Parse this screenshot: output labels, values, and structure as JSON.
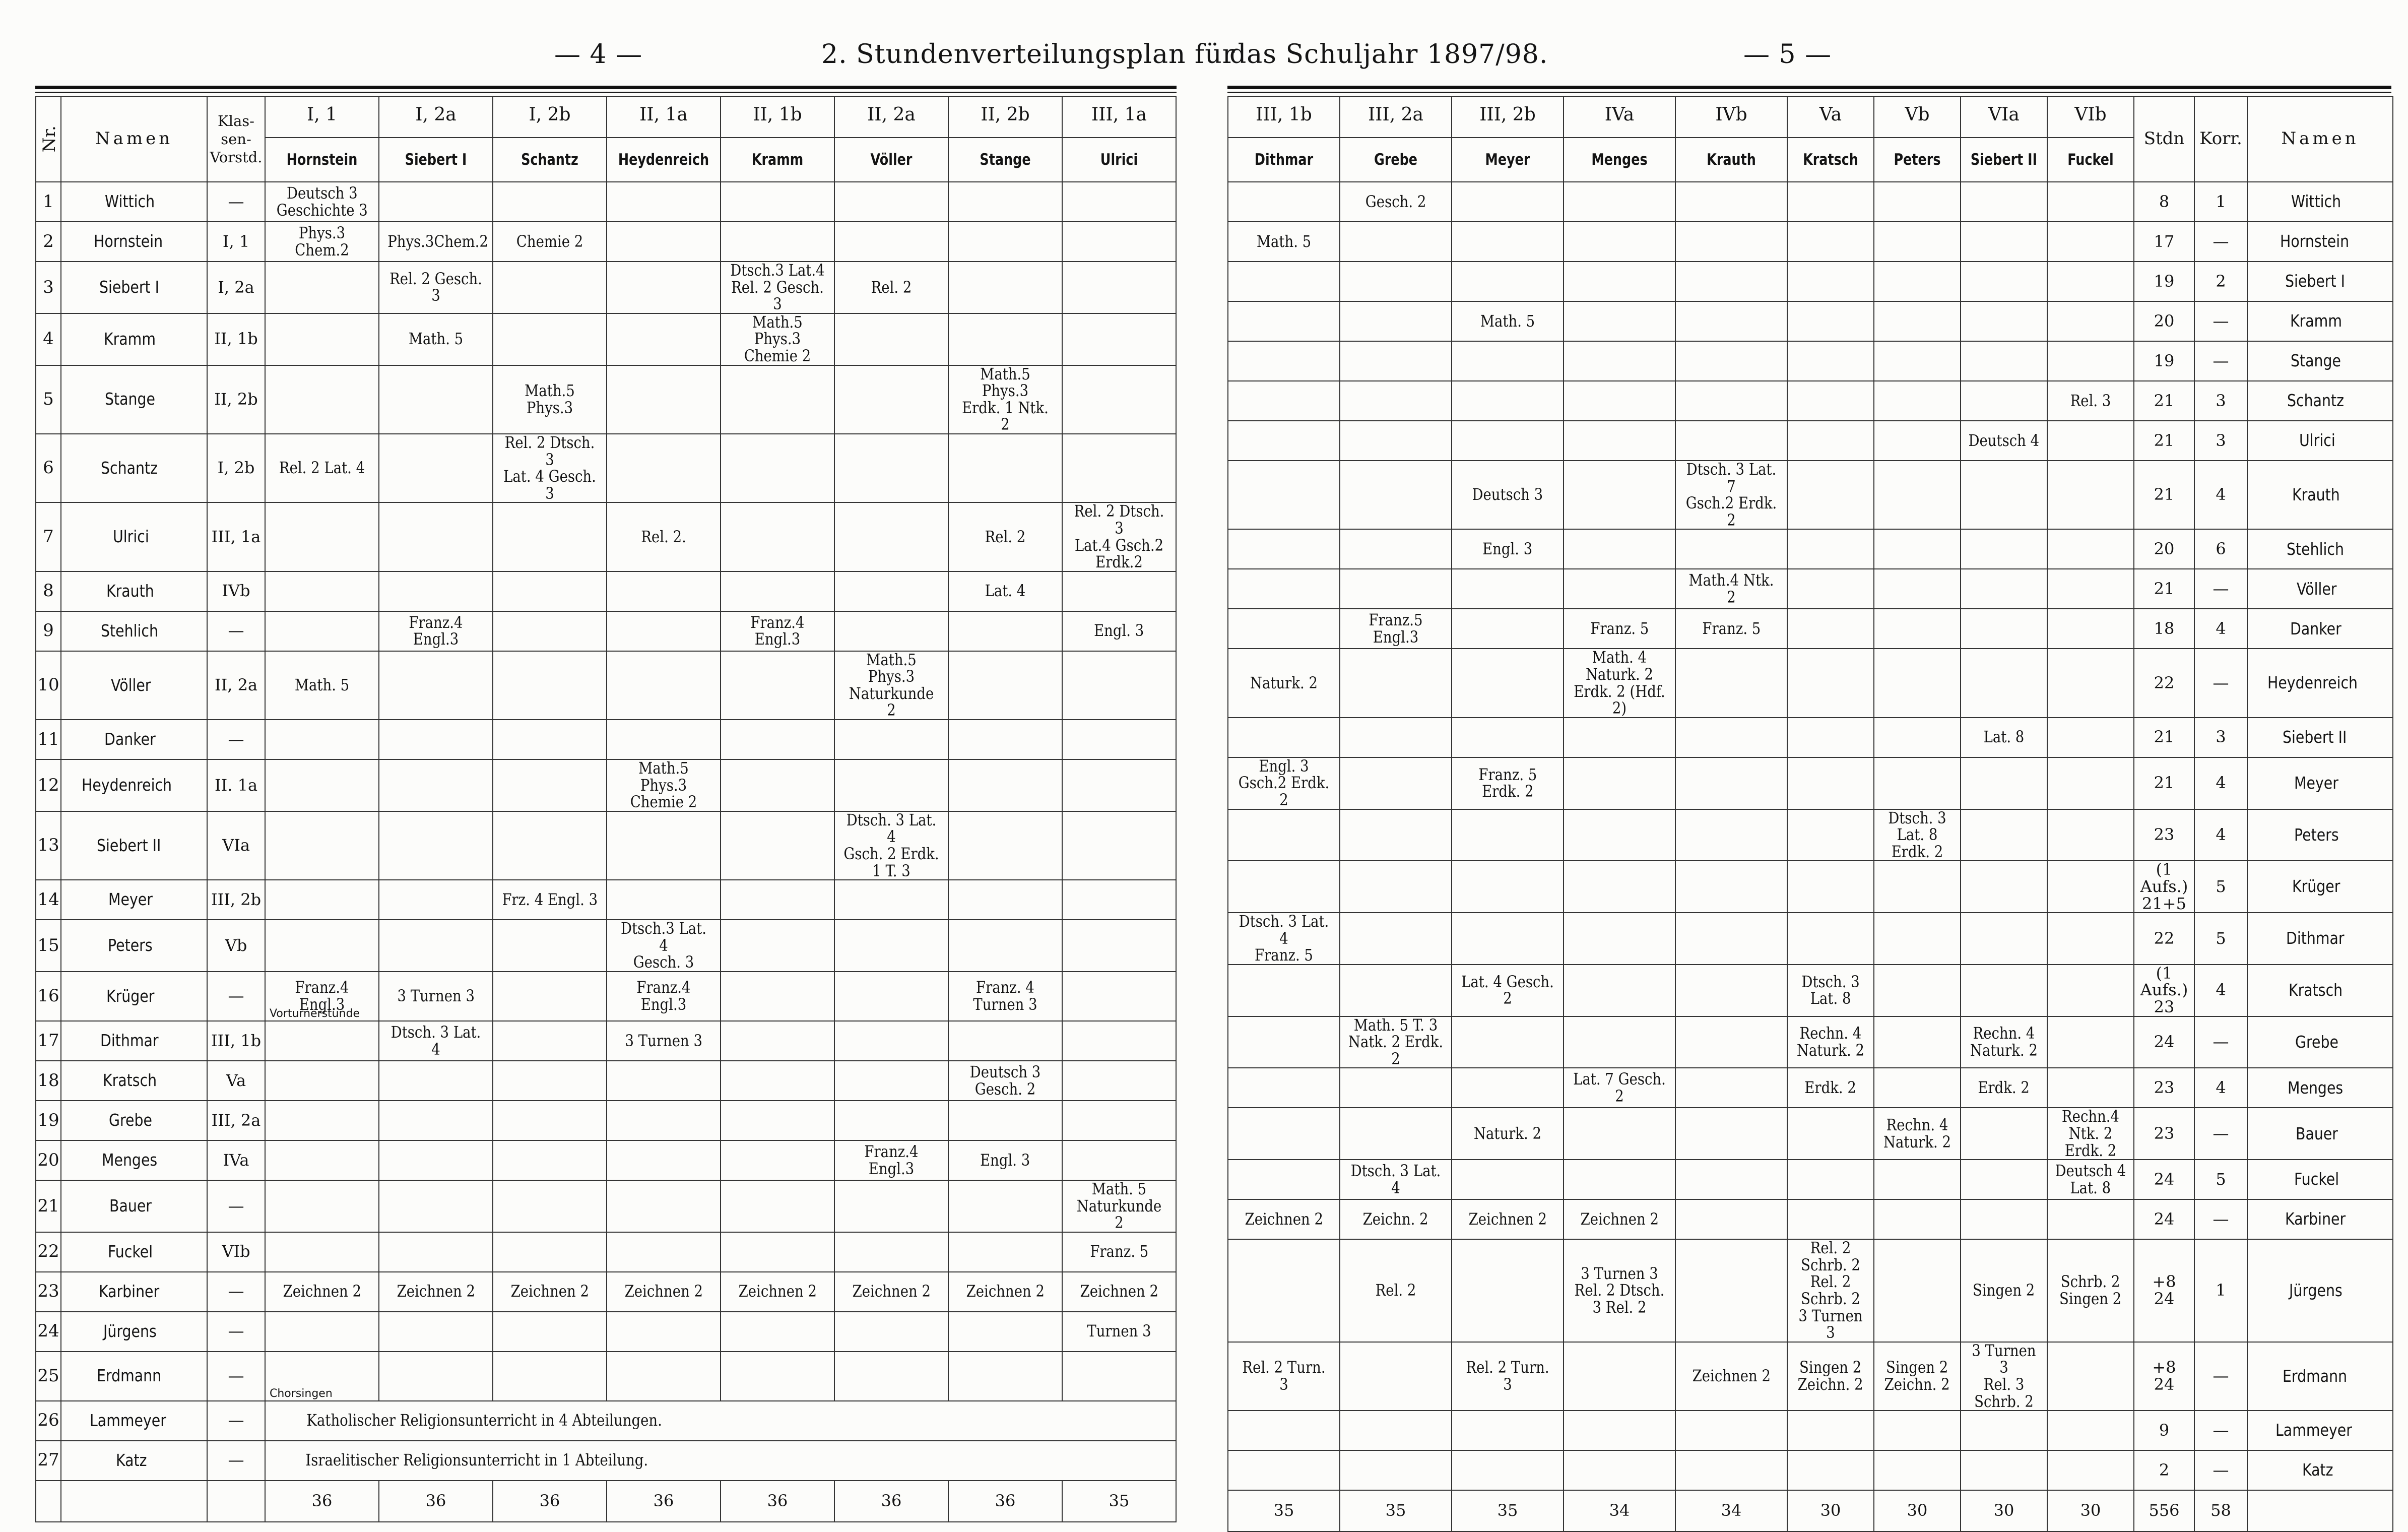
{
  "left_header": {
    "page_number": "— 4 —",
    "title": "2. Stundenverteilungsplan für"
  },
  "right_header": {
    "title": "das Schuljahr 1897/98.",
    "page_number": "— 5 —"
  },
  "left_table": {
    "col_nr": "Nr.",
    "col_name": "Namen",
    "col_klass": "Klas-\nsen-\nVorstd.",
    "columns": [
      {
        "grade": "I, 1",
        "teacher": "Hornstein"
      },
      {
        "grade": "I, 2a",
        "teacher": "Siebert I"
      },
      {
        "grade": "I, 2b",
        "teacher": "Schantz"
      },
      {
        "grade": "II, 1a",
        "teacher": "Heydenreich"
      },
      {
        "grade": "II, 1b",
        "teacher": "Kramm"
      },
      {
        "grade": "II, 2a",
        "teacher": "Völler"
      },
      {
        "grade": "II, 2b",
        "teacher": "Stange"
      },
      {
        "grade": "III, 1a",
        "teacher": "Ulrici"
      }
    ],
    "totals": [
      "36",
      "36",
      "36",
      "36",
      "36",
      "36",
      "36",
      "35"
    ]
  },
  "right_table": {
    "col_stdn": "Stdn",
    "col_korr": "Korr.",
    "col_name": "Namen",
    "columns": [
      {
        "grade": "III, 1b",
        "teacher": "Dithmar"
      },
      {
        "grade": "III, 2a",
        "teacher": "Grebe"
      },
      {
        "grade": "III, 2b",
        "teacher": "Meyer"
      },
      {
        "grade": "IVa",
        "teacher": "Menges"
      },
      {
        "grade": "IVb",
        "teacher": "Krauth"
      },
      {
        "grade": "Va",
        "teacher": "Kratsch"
      },
      {
        "grade": "Vb",
        "teacher": "Peters"
      },
      {
        "grade": "VIa",
        "teacher": "Siebert II"
      },
      {
        "grade": "VIb",
        "teacher": "Fuckel"
      }
    ],
    "totals": [
      "35",
      "35",
      "35",
      "34",
      "34",
      "30",
      "30",
      "30",
      "30",
      "556",
      "58"
    ]
  },
  "rows": [
    {
      "nr": "1",
      "name": "Wittich",
      "klass": "—",
      "left": [
        "Deutsch 3\nGeschichte 3",
        "",
        "",
        "",
        "",
        "",
        "",
        ""
      ],
      "right": [
        "",
        "Gesch. 2",
        "",
        "",
        "",
        "",
        "",
        "",
        ""
      ],
      "stdn": "8",
      "korr": "1"
    },
    {
      "nr": "2",
      "name": "Hornstein",
      "klass": "I, 1",
      "left": [
        "Phys.3 Chem.2",
        "Phys.3Chem.2",
        "Chemie 2",
        "",
        "",
        "",
        "",
        ""
      ],
      "right": [
        "Math. 5",
        "",
        "",
        "",
        "",
        "",
        "",
        "",
        ""
      ],
      "stdn": "17",
      "korr": "—"
    },
    {
      "nr": "3",
      "name": "Siebert I",
      "klass": "I, 2a",
      "left": [
        "",
        "Rel. 2 Gesch. 3",
        "",
        "",
        "Dtsch.3 Lat.4\nRel. 2 Gesch. 3",
        "Rel. 2",
        "",
        ""
      ],
      "right": [
        "",
        "",
        "",
        "",
        "",
        "",
        "",
        "",
        ""
      ],
      "stdn": "19",
      "korr": "2"
    },
    {
      "nr": "4",
      "name": "Kramm",
      "klass": "II, 1b",
      "left": [
        "",
        "Math. 5",
        "",
        "",
        "Math.5 Phys.3\nChemie 2",
        "",
        "",
        ""
      ],
      "right": [
        "",
        "",
        "Math. 5",
        "",
        "",
        "",
        "",
        "",
        ""
      ],
      "stdn": "20",
      "korr": "—"
    },
    {
      "nr": "5",
      "name": "Stange",
      "klass": "II, 2b",
      "left": [
        "",
        "",
        "Math.5 Phys.3",
        "",
        "",
        "",
        "Math.5 Phys.3\nErdk. 1 Ntk. 2",
        ""
      ],
      "right": [
        "",
        "",
        "",
        "",
        "",
        "",
        "",
        "",
        ""
      ],
      "stdn": "19",
      "korr": "—"
    },
    {
      "nr": "6",
      "name": "Schantz",
      "klass": "I, 2b",
      "left": [
        "Rel. 2 Lat. 4",
        "",
        "Rel. 2 Dtsch. 3\nLat. 4 Gesch. 3",
        "",
        "",
        "",
        "",
        ""
      ],
      "right": [
        "",
        "",
        "",
        "",
        "",
        "",
        "",
        "",
        "Rel. 3"
      ],
      "stdn": "21",
      "korr": "3"
    },
    {
      "nr": "7",
      "name": "Ulrici",
      "klass": "III, 1a",
      "left": [
        "",
        "",
        "",
        "Rel. 2.",
        "",
        "",
        "Rel. 2",
        "Rel. 2 Dtsch. 3\nLat.4 Gsch.2 Erdk.2"
      ],
      "right": [
        "",
        "",
        "",
        "",
        "",
        "",
        "",
        "Deutsch 4",
        ""
      ],
      "stdn": "21",
      "korr": "3"
    },
    {
      "nr": "8",
      "name": "Krauth",
      "klass": "IVb",
      "left": [
        "",
        "",
        "",
        "",
        "",
        "",
        "Lat. 4",
        ""
      ],
      "right": [
        "",
        "",
        "Deutsch 3",
        "",
        "Dtsch. 3 Lat. 7\nGsch.2 Erdk. 2",
        "",
        "",
        "",
        ""
      ],
      "stdn": "21",
      "korr": "4"
    },
    {
      "nr": "9",
      "name": "Stehlich",
      "klass": "—",
      "left": [
        "",
        "Franz.4 Engl.3",
        "",
        "",
        "Franz.4 Engl.3",
        "",
        "",
        "Engl. 3"
      ],
      "right": [
        "",
        "",
        "Engl. 3",
        "",
        "",
        "",
        "",
        "",
        ""
      ],
      "stdn": "20",
      "korr": "6"
    },
    {
      "nr": "10",
      "name": "Völler",
      "klass": "II, 2a",
      "left": [
        "Math. 5",
        "",
        "",
        "",
        "",
        "Math.5 Phys.3\nNaturkunde 2",
        "",
        ""
      ],
      "right": [
        "",
        "",
        "",
        "",
        "Math.4 Ntk. 2",
        "",
        "",
        "",
        ""
      ],
      "stdn": "21",
      "korr": "—"
    },
    {
      "nr": "11",
      "name": "Danker",
      "klass": "—",
      "left": [
        "",
        "",
        "",
        "",
        "",
        "",
        "",
        ""
      ],
      "right": [
        "",
        "Franz.5 Engl.3",
        "",
        "Franz. 5",
        "Franz. 5",
        "",
        "",
        "",
        ""
      ],
      "stdn": "18",
      "korr": "4"
    },
    {
      "nr": "12",
      "name": "Heydenreich",
      "klass": "II. 1a",
      "left": [
        "",
        "",
        "",
        "Math.5 Phys.3\nChemie 2",
        "",
        "",
        "",
        ""
      ],
      "right": [
        "Naturk. 2",
        "",
        "",
        "Math. 4 Naturk. 2\nErdk. 2 (Hdf. 2)",
        "",
        "",
        "",
        "",
        ""
      ],
      "stdn": "22",
      "korr": "—"
    },
    {
      "nr": "13",
      "name": "Siebert II",
      "klass": "VIa",
      "left": [
        "",
        "",
        "",
        "",
        "",
        "Dtsch. 3 Lat. 4\nGsch. 2 Erdk. 1 T. 3",
        "",
        ""
      ],
      "right": [
        "",
        "",
        "",
        "",
        "",
        "",
        "",
        "Lat. 8",
        ""
      ],
      "stdn": "21",
      "korr": "3"
    },
    {
      "nr": "14",
      "name": "Meyer",
      "klass": "III, 2b",
      "left": [
        "",
        "",
        "Frz. 4 Engl. 3",
        "",
        "",
        "",
        "",
        ""
      ],
      "right": [
        "Engl. 3\nGsch.2 Erdk. 2",
        "",
        "Franz. 5\nErdk. 2",
        "",
        "",
        "",
        "",
        "",
        ""
      ],
      "stdn": "21",
      "korr": "4"
    },
    {
      "nr": "15",
      "name": "Peters",
      "klass": "Vb",
      "left": [
        "",
        "",
        "",
        "Dtsch.3 Lat. 4\nGesch. 3",
        "",
        "",
        "",
        ""
      ],
      "right": [
        "",
        "",
        "",
        "",
        "",
        "",
        "Dtsch. 3 Lat. 8\nErdk. 2",
        "",
        ""
      ],
      "stdn": "23",
      "korr": "4"
    },
    {
      "nr": "16",
      "name": "Krüger",
      "klass": "—",
      "left": [
        "Franz.4 Engl.3",
        "3 Turnen 3",
        "",
        "Franz.4 Engl.3",
        "",
        "",
        "Franz. 4\nTurnen 3",
        ""
      ],
      "right": [
        "",
        "",
        "",
        "",
        "",
        "",
        "",
        "",
        ""
      ],
      "stdn": "(1 Aufs.)\n21+5",
      "korr": "5",
      "note_left": "Vorturnerstunde"
    },
    {
      "nr": "17",
      "name": "Dithmar",
      "klass": "III, 1b",
      "left": [
        "",
        "Dtsch. 3 Lat. 4",
        "",
        "3 Turnen 3",
        "",
        "",
        "",
        ""
      ],
      "right": [
        "Dtsch. 3 Lat. 4\nFranz. 5",
        "",
        "",
        "",
        "",
        "",
        "",
        "",
        ""
      ],
      "stdn": "22",
      "korr": "5"
    },
    {
      "nr": "18",
      "name": "Kratsch",
      "klass": "Va",
      "left": [
        "",
        "",
        "",
        "",
        "",
        "",
        "Deutsch 3 Gesch. 2",
        ""
      ],
      "right": [
        "",
        "",
        "Lat. 4 Gesch. 2",
        "",
        "",
        "Dtsch. 3\nLat. 8",
        "",
        "",
        ""
      ],
      "stdn": "(1 Aufs.)\n23",
      "korr": "4"
    },
    {
      "nr": "19",
      "name": "Grebe",
      "klass": "III, 2a",
      "left": [
        "",
        "",
        "",
        "",
        "",
        "",
        "",
        ""
      ],
      "right": [
        "",
        "Math. 5 T. 3\nNatk. 2 Erdk. 2",
        "",
        "",
        "",
        "Rechn. 4\nNaturk. 2",
        "",
        "Rechn. 4\nNaturk. 2",
        ""
      ],
      "stdn": "24",
      "korr": "—"
    },
    {
      "nr": "20",
      "name": "Menges",
      "klass": "IVa",
      "left": [
        "",
        "",
        "",
        "",
        "",
        "Franz.4 Engl.3",
        "Engl. 3",
        ""
      ],
      "right": [
        "",
        "",
        "",
        "Lat. 7 Gesch. 2",
        "",
        "Erdk. 2",
        "",
        "Erdk. 2",
        ""
      ],
      "stdn": "23",
      "korr": "4"
    },
    {
      "nr": "21",
      "name": "Bauer",
      "klass": "—",
      "left": [
        "",
        "",
        "",
        "",
        "",
        "",
        "",
        "Math. 5\nNaturkunde 2"
      ],
      "right": [
        "",
        "",
        "Naturk. 2",
        "",
        "",
        "",
        "Rechn. 4\nNaturk. 2",
        "",
        "Rechn.4 Ntk. 2\nErdk. 2"
      ],
      "stdn": "23",
      "korr": "—"
    },
    {
      "nr": "22",
      "name": "Fuckel",
      "klass": "VIb",
      "left": [
        "",
        "",
        "",
        "",
        "",
        "",
        "",
        "Franz. 5"
      ],
      "right": [
        "",
        "Dtsch. 3 Lat. 4",
        "",
        "",
        "",
        "",
        "",
        "",
        "Deutsch 4\nLat. 8"
      ],
      "stdn": "24",
      "korr": "5"
    },
    {
      "nr": "23",
      "name": "Karbiner",
      "klass": "—",
      "left": [
        "Zeichnen 2",
        "Zeichnen 2",
        "Zeichnen 2",
        "Zeichnen 2",
        "Zeichnen 2",
        "Zeichnen 2",
        "Zeichnen 2",
        "Zeichnen 2"
      ],
      "right": [
        "Zeichnen 2",
        "Zeichn. 2",
        "Zeichnen 2",
        "Zeichnen 2",
        "",
        "",
        "",
        "",
        ""
      ],
      "stdn": "24",
      "korr": "—"
    },
    {
      "nr": "24",
      "name": "Jürgens",
      "klass": "—",
      "left": [
        "",
        "",
        "",
        "",
        "",
        "",
        "",
        "Turnen 3"
      ],
      "right": [
        "",
        "Rel. 2",
        "",
        "3 Turnen 3\nRel. 2 Dtsch. 3 Rel. 2",
        "",
        "Rel. 2 Schrb. 2 Rel. 2 Schrb. 2\n3 Turnen 3",
        "",
        "Singen 2",
        "Schrb. 2\nSingen 2"
      ],
      "stdn": "+8\n24",
      "korr": "1"
    },
    {
      "nr": "25",
      "name": "Erdmann",
      "klass": "—",
      "left": [
        "",
        "",
        "",
        "",
        "",
        "",
        "",
        ""
      ],
      "right": [
        "Rel. 2 Turn. 3",
        "",
        "Rel. 2 Turn. 3",
        "",
        "Zeichnen 2",
        "Singen 2\nZeichn. 2",
        "Singen 2\nZeichn. 2",
        "3 Turnen 3\nRel. 3 Schrb. 2",
        ""
      ],
      "stdn": "+8\n24",
      "korr": "—",
      "note_left": "Chorsingen"
    },
    {
      "nr": "26",
      "name": "Lammeyer",
      "klass": "—",
      "left_span": "Katholischer Religionsunterricht in 4 Abteilungen.",
      "right": [
        "",
        "",
        "",
        "",
        "",
        "",
        "",
        "",
        ""
      ],
      "stdn": "9",
      "korr": "—"
    },
    {
      "nr": "27",
      "name": "Katz",
      "klass": "—",
      "left_span": "Israelitischer Religionsunterricht in 1 Abteilung.",
      "right": [
        "",
        "",
        "",
        "",
        "",
        "",
        "",
        "",
        ""
      ],
      "stdn": "2",
      "korr": "—"
    }
  ]
}
